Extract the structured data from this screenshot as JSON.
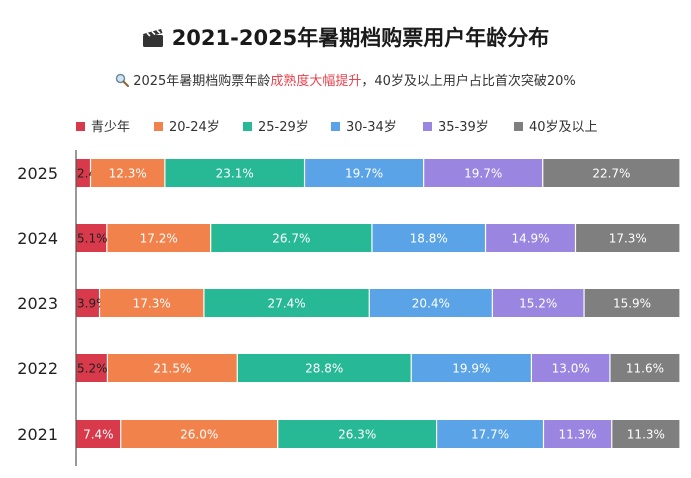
{
  "header": {
    "title": "2021-2025年暑期档购票用户年龄分布",
    "title_icon": "clapperboard-icon",
    "subtitle_prefix": "2025年暑期档购票年龄",
    "subtitle_highlight": "成熟度大幅提升",
    "subtitle_suffix": "，40岁及以上用户占比首次突破20%",
    "subtitle_icon": "magnifier-icon"
  },
  "chart_data": {
    "type": "bar",
    "orientation": "horizontal",
    "stacked": true,
    "percent_stacked": true,
    "legend_position": "top-left",
    "grid": false,
    "categories": [
      "2025",
      "2024",
      "2023",
      "2022",
      "2021"
    ],
    "series": [
      {
        "name": "青少年",
        "color": "#d83a4c",
        "values": [
          2.4,
          5.1,
          3.9,
          5.2,
          7.4
        ]
      },
      {
        "name": "20-24岁",
        "color": "#f1824b",
        "values": [
          12.3,
          17.2,
          17.3,
          21.5,
          26.0
        ]
      },
      {
        "name": "25-29岁",
        "color": "#27b996",
        "values": [
          23.1,
          26.7,
          27.4,
          28.8,
          26.3
        ]
      },
      {
        "name": "30-34岁",
        "color": "#5aa3e6",
        "values": [
          19.7,
          18.8,
          20.4,
          19.9,
          17.7
        ]
      },
      {
        "name": "35-39岁",
        "color": "#9a86e0",
        "values": [
          19.7,
          14.9,
          15.2,
          13.0,
          11.3
        ]
      },
      {
        "name": "40岁及以上",
        "color": "#7f7f7f",
        "values": [
          22.7,
          17.3,
          15.9,
          11.6,
          11.3
        ]
      }
    ],
    "label_format": "{v}%"
  }
}
